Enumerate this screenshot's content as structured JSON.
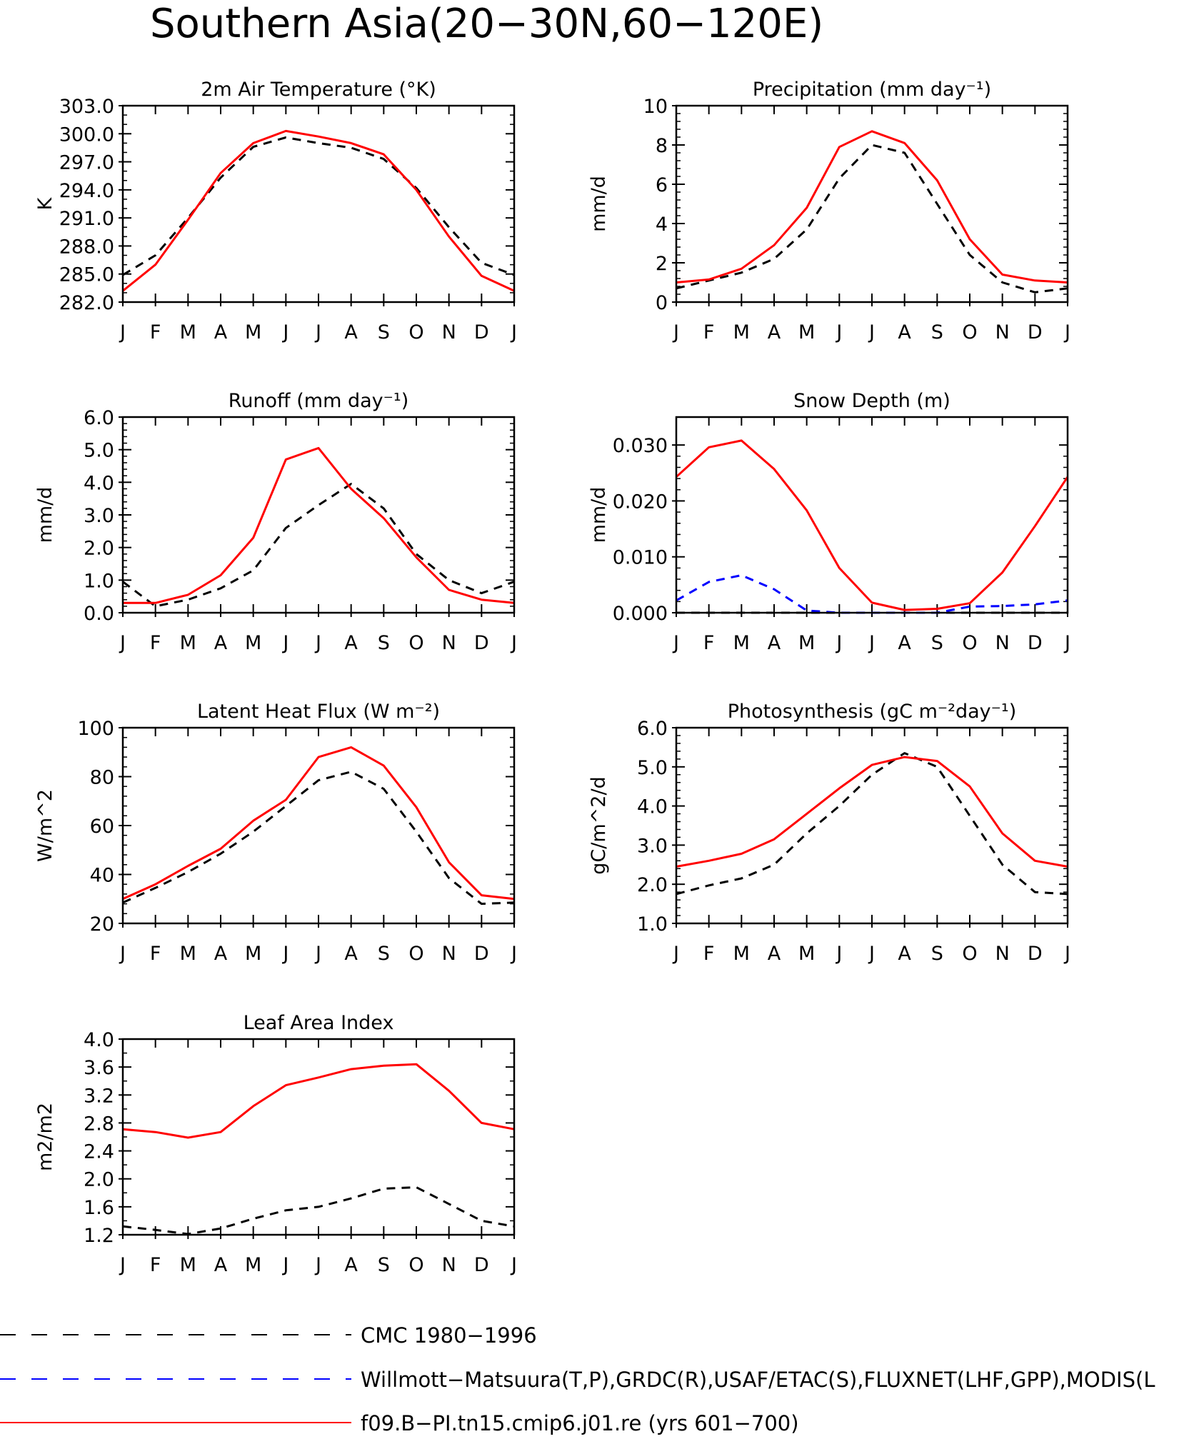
{
  "title": "Southern Asia(20−30N,60−120E)",
  "months": [
    "J",
    "F",
    "M",
    "A",
    "M",
    "J",
    "J",
    "A",
    "S",
    "O",
    "N",
    "D",
    "J"
  ],
  "colors": {
    "cmc": "#000000",
    "obs": "#0000ff",
    "model": "#ff0000"
  },
  "legend": {
    "cmc": "CMC 1980−1996",
    "obs": "Willmott−Matsuura(T,P),GRDC(R),USAF/ETAC(S),FLUXNET(LHF,GPP),MODIS(L",
    "model": "f09.B−PI.tn15.cmip6.j01.re (yrs 601−700)"
  },
  "chart_data": [
    {
      "type": "line",
      "title": "2m Air Temperature (°K)",
      "ylabel": "K",
      "ylim": [
        282,
        303
      ],
      "yticks": [
        282,
        285,
        288,
        291,
        294,
        297,
        300,
        303
      ],
      "yticklabels": [
        "282.0",
        "285.0",
        "288.0",
        "291.0",
        "294.0",
        "297.0",
        "300.0",
        "303.0"
      ],
      "yminor": 2,
      "series": [
        {
          "key": "cmc",
          "values": [
            284.9,
            287.0,
            291.0,
            295.3,
            298.6,
            299.6,
            299.0,
            298.5,
            297.3,
            294.2,
            290.0,
            286.2,
            284.9
          ]
        },
        {
          "key": "model",
          "values": [
            283.2,
            286.0,
            290.8,
            295.8,
            299.0,
            300.3,
            299.7,
            299.0,
            297.8,
            294.0,
            289.0,
            284.8,
            283.2
          ]
        }
      ]
    },
    {
      "type": "line",
      "title": "Precipitation (mm day⁻¹)",
      "ylabel": "mm/d",
      "ylim": [
        0,
        10
      ],
      "yticks": [
        0,
        2,
        4,
        6,
        8,
        10
      ],
      "yticklabels": [
        "0",
        "2",
        "4",
        "6",
        "8",
        "10"
      ],
      "yminor": 4,
      "series": [
        {
          "key": "cmc",
          "values": [
            0.7,
            1.1,
            1.5,
            2.2,
            3.7,
            6.3,
            8.0,
            7.6,
            5.0,
            2.4,
            1.0,
            0.5,
            0.7
          ]
        },
        {
          "key": "model",
          "values": [
            1.0,
            1.15,
            1.7,
            2.9,
            4.8,
            7.9,
            8.7,
            8.1,
            6.2,
            3.2,
            1.4,
            1.1,
            1.0
          ]
        }
      ]
    },
    {
      "type": "line",
      "title": "Runoff (mm day⁻¹)",
      "ylabel": "mm/d",
      "ylim": [
        0,
        6
      ],
      "yticks": [
        0,
        1,
        2,
        3,
        4,
        5,
        6
      ],
      "yticklabels": [
        "0.0",
        "1.0",
        "2.0",
        "3.0",
        "4.0",
        "5.0",
        "6.0"
      ],
      "yminor": 4,
      "series": [
        {
          "key": "cmc",
          "values": [
            0.95,
            0.2,
            0.4,
            0.75,
            1.3,
            2.6,
            3.3,
            3.95,
            3.2,
            1.8,
            1.0,
            0.6,
            0.95
          ]
        },
        {
          "key": "model",
          "values": [
            0.3,
            0.3,
            0.55,
            1.15,
            2.3,
            4.7,
            5.05,
            3.8,
            2.9,
            1.7,
            0.7,
            0.4,
            0.3
          ]
        }
      ]
    },
    {
      "type": "line",
      "title": "Snow Depth (m)",
      "ylabel": "mm/d",
      "ylim": [
        0,
        0.035
      ],
      "yticks": [
        0,
        0.01,
        0.02,
        0.03
      ],
      "yticklabels": [
        "0.000",
        "0.010",
        "0.020",
        "0.030"
      ],
      "yminor": 4,
      "series": [
        {
          "key": "cmc",
          "values": [
            0,
            0,
            0,
            0,
            0,
            0,
            0,
            0,
            0,
            0,
            0,
            0,
            0
          ]
        },
        {
          "key": "obs",
          "values": [
            0.0022,
            0.0055,
            0.0067,
            0.0042,
            0.0004,
            0,
            0,
            0,
            0,
            0.0011,
            0.0012,
            0.0015,
            0.0022
          ]
        },
        {
          "key": "model",
          "values": [
            0.0243,
            0.0296,
            0.0308,
            0.0257,
            0.0183,
            0.008,
            0.0018,
            0.0005,
            0.0007,
            0.0017,
            0.0072,
            0.0155,
            0.0243
          ]
        }
      ]
    },
    {
      "type": "line",
      "title": "Latent Heat Flux (W m⁻²)",
      "ylabel": "W/m^2",
      "ylim": [
        20,
        100
      ],
      "yticks": [
        20,
        40,
        60,
        80,
        100
      ],
      "yticklabels": [
        "20",
        "40",
        "60",
        "80",
        "100"
      ],
      "yminor": 4,
      "series": [
        {
          "key": "cmc",
          "values": [
            28.5,
            34.5,
            41,
            48.5,
            57.5,
            68,
            78.5,
            82,
            75,
            57.5,
            38.5,
            28,
            28.5
          ]
        },
        {
          "key": "model",
          "values": [
            30,
            36,
            43.5,
            50.5,
            62,
            70.5,
            88,
            92,
            84.5,
            67.5,
            45,
            31.5,
            30
          ]
        }
      ]
    },
    {
      "type": "line",
      "title": "Photosynthesis (gC m⁻²day⁻¹)",
      "ylabel": "gC/m^2/d",
      "ylim": [
        1,
        6
      ],
      "yticks": [
        1,
        2,
        3,
        4,
        5,
        6
      ],
      "yticklabels": [
        "1.0",
        "2.0",
        "3.0",
        "4.0",
        "5.0",
        "6.0"
      ],
      "yminor": 4,
      "series": [
        {
          "key": "cmc",
          "values": [
            1.75,
            1.97,
            2.15,
            2.5,
            3.3,
            4.0,
            4.8,
            5.35,
            5.0,
            3.75,
            2.5,
            1.8,
            1.75
          ]
        },
        {
          "key": "model",
          "values": [
            2.45,
            2.6,
            2.78,
            3.15,
            3.8,
            4.45,
            5.05,
            5.25,
            5.15,
            4.5,
            3.3,
            2.6,
            2.45
          ]
        }
      ]
    },
    {
      "type": "line",
      "title": "Leaf Area Index",
      "ylabel": "m2/m2",
      "ylim": [
        1.2,
        4.0
      ],
      "yticks": [
        1.2,
        1.6,
        2.0,
        2.4,
        2.8,
        3.2,
        3.6,
        4.0
      ],
      "yticklabels": [
        "1.2",
        "1.6",
        "2.0",
        "2.4",
        "2.8",
        "3.2",
        "3.6",
        "4.0"
      ],
      "yminor": 1,
      "series": [
        {
          "key": "cmc",
          "values": [
            1.32,
            1.27,
            1.21,
            1.29,
            1.43,
            1.55,
            1.6,
            1.72,
            1.86,
            1.88,
            1.64,
            1.4,
            1.32
          ]
        },
        {
          "key": "model",
          "values": [
            2.71,
            2.67,
            2.59,
            2.67,
            3.04,
            3.34,
            3.45,
            3.57,
            3.62,
            3.64,
            3.26,
            2.8,
            2.71
          ]
        }
      ]
    }
  ]
}
